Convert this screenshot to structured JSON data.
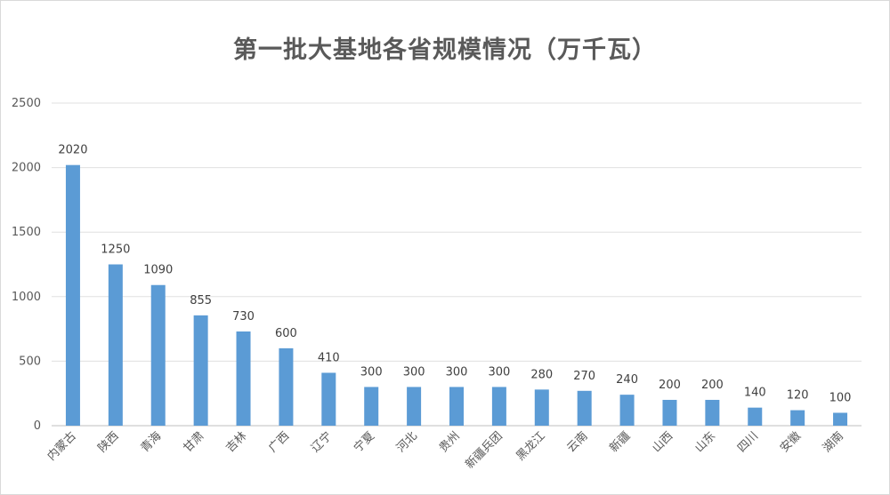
{
  "chart_data": {
    "type": "bar",
    "title": "第一批大基地各省规模情况（万千瓦）",
    "xlabel": "",
    "ylabel": "",
    "ylim": [
      0,
      2500
    ],
    "yticks": [
      0,
      500,
      1000,
      1500,
      2000,
      2500
    ],
    "grid": true,
    "legend": "none",
    "bar_color": "#5b9bd5",
    "categories": [
      "内蒙古",
      "陕西",
      "青海",
      "甘肃",
      "吉林",
      "广西",
      "辽宁",
      "宁夏",
      "河北",
      "贵州",
      "新疆兵团",
      "黑龙江",
      "云南",
      "新疆",
      "山西",
      "山东",
      "四川",
      "安徽",
      "湖南"
    ],
    "values": [
      2020,
      1250,
      1090,
      855,
      730,
      600,
      410,
      300,
      300,
      300,
      300,
      280,
      270,
      240,
      200,
      200,
      140,
      120,
      100
    ]
  }
}
